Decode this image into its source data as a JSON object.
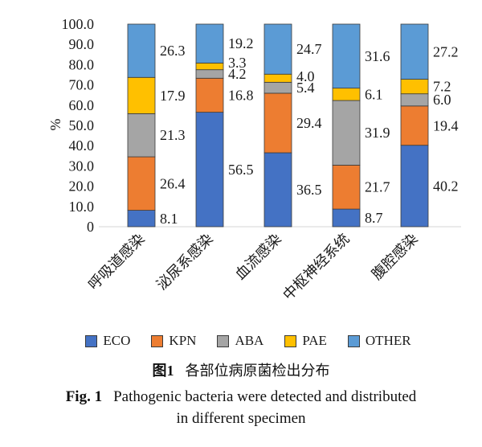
{
  "chart_data": {
    "type": "bar",
    "stacked": true,
    "categories": [
      "呼吸道感染",
      "泌尿系感染",
      "血流感染",
      "中枢神经系统",
      "腹腔感染"
    ],
    "series": [
      {
        "name": "ECO",
        "color": "#4472C4",
        "values": [
          8.1,
          56.5,
          36.5,
          8.7,
          40.2
        ]
      },
      {
        "name": "KPN",
        "color": "#ED7D31",
        "values": [
          26.4,
          16.8,
          29.4,
          21.7,
          19.4
        ]
      },
      {
        "name": "ABA",
        "color": "#A5A5A5",
        "values": [
          21.3,
          4.2,
          5.4,
          31.9,
          6.0
        ]
      },
      {
        "name": "PAE",
        "color": "#FFC000",
        "values": [
          17.9,
          3.3,
          4.0,
          6.1,
          7.2
        ]
      },
      {
        "name": "OTHER",
        "color": "#5B9BD5",
        "values": [
          26.3,
          19.2,
          24.7,
          31.6,
          27.2
        ]
      }
    ],
    "xlabel": "",
    "ylabel": "%",
    "ylim": [
      0,
      100
    ],
    "ytick_labels": [
      "0",
      "10.0",
      "20.0",
      "30.0",
      "40.0",
      "50.0",
      "60.0",
      "70.0",
      "80.0",
      "90.0",
      "100.0"
    ],
    "data_labels": true,
    "grid": false,
    "legend_position": "bottom"
  },
  "caption": {
    "cn_label": "图1",
    "cn_text": "各部位病原菌检出分布",
    "en_label": "Fig. 1",
    "en_lines": [
      "Pathogenic bacteria were detected and distributed",
      "in different specimen"
    ]
  }
}
